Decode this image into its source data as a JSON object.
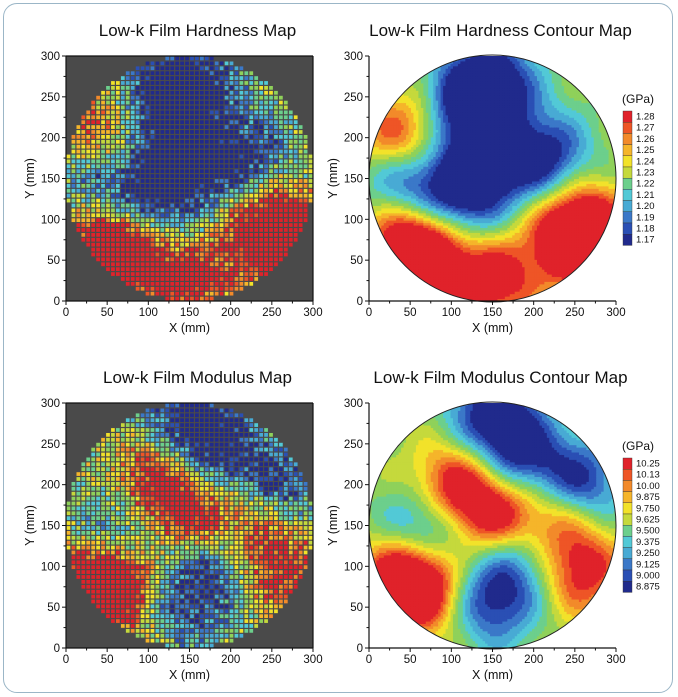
{
  "colors": {
    "frame_border": "#9bb6c7",
    "map_background": "#4a4a4a",
    "scale": [
      "#202a8c",
      "#2a4fb4",
      "#3b78c8",
      "#48aad4",
      "#52c9d6",
      "#6ccf8c",
      "#8fd15a",
      "#c5d93c",
      "#f2e22a",
      "#f5b52a",
      "#f28a2a",
      "#ee5526",
      "#e0222a"
    ]
  },
  "chart_data": [
    {
      "type": "heatmap",
      "title": "Low-k Film Hardness Map",
      "xlabel": "X (mm)",
      "ylabel": "Y (mm)",
      "xlim": [
        0,
        300
      ],
      "ylim": [
        0,
        300
      ],
      "xticks": [
        "0",
        "50",
        "100",
        "150",
        "200",
        "250",
        "300"
      ],
      "yticks": [
        "0",
        "50",
        "100",
        "150",
        "200",
        "250",
        "300"
      ],
      "wafer_diameter": 300,
      "cell_pitch": 6,
      "value_range": [
        1.17,
        1.28
      ],
      "hot_spots": [
        {
          "x": 50,
          "y": 80,
          "v": 1.28
        },
        {
          "x": 75,
          "y": 55,
          "v": 1.27
        },
        {
          "x": 260,
          "y": 95,
          "v": 1.28
        },
        {
          "x": 250,
          "y": 70,
          "v": 1.26
        },
        {
          "x": 40,
          "y": 200,
          "v": 1.25
        },
        {
          "x": 150,
          "y": 25,
          "v": 1.26
        }
      ],
      "cold_spots": [
        {
          "x": 120,
          "y": 240,
          "v": 1.17
        },
        {
          "x": 140,
          "y": 170,
          "v": 1.19
        },
        {
          "x": 215,
          "y": 175,
          "v": 1.18
        },
        {
          "x": 150,
          "y": 270,
          "v": 1.18
        },
        {
          "x": 105,
          "y": 115,
          "v": 1.19
        },
        {
          "x": 45,
          "y": 150,
          "v": 1.19
        }
      ]
    },
    {
      "type": "contour",
      "title": "Low-k Film Hardness Contour Map",
      "xlabel": "X (mm)",
      "ylabel": "Y (mm)",
      "xlim": [
        0,
        300
      ],
      "ylim": [
        0,
        300
      ],
      "xticks": [
        "0",
        "50",
        "100",
        "150",
        "200",
        "250",
        "300"
      ],
      "yticks": [
        "0",
        "50",
        "100",
        "150",
        "200",
        "250",
        "300"
      ],
      "wafer_diameter": 300,
      "unit": "(GPa)",
      "levels": [
        "1.28",
        "1.27",
        "1.26",
        "1.25",
        "1.24",
        "1.23",
        "1.22",
        "1.21",
        "1.20",
        "1.19",
        "1.18",
        "1.17"
      ],
      "value_range": [
        1.17,
        1.28
      ],
      "hot_spots": [
        {
          "x": 50,
          "y": 80,
          "v": 1.28
        },
        {
          "x": 75,
          "y": 55,
          "v": 1.27
        },
        {
          "x": 260,
          "y": 95,
          "v": 1.28
        },
        {
          "x": 250,
          "y": 70,
          "v": 1.26
        },
        {
          "x": 40,
          "y": 200,
          "v": 1.25
        },
        {
          "x": 150,
          "y": 25,
          "v": 1.26
        }
      ],
      "cold_spots": [
        {
          "x": 120,
          "y": 240,
          "v": 1.17
        },
        {
          "x": 140,
          "y": 170,
          "v": 1.19
        },
        {
          "x": 215,
          "y": 175,
          "v": 1.18
        },
        {
          "x": 150,
          "y": 270,
          "v": 1.18
        },
        {
          "x": 105,
          "y": 115,
          "v": 1.19
        },
        {
          "x": 45,
          "y": 150,
          "v": 1.19
        }
      ]
    },
    {
      "type": "heatmap",
      "title": "Low-k Film Modulus Map",
      "xlabel": "X (mm)",
      "ylabel": "Y (mm)",
      "xlim": [
        0,
        300
      ],
      "ylim": [
        0,
        300
      ],
      "xticks": [
        "0",
        "50",
        "100",
        "150",
        "200",
        "250",
        "300"
      ],
      "yticks": [
        "0",
        "50",
        "100",
        "150",
        "200",
        "250",
        "300"
      ],
      "wafer_diameter": 300,
      "cell_pitch": 6,
      "value_range": [
        8.875,
        10.25
      ],
      "hot_spots": [
        {
          "x": 45,
          "y": 90,
          "v": 10.25
        },
        {
          "x": 60,
          "y": 70,
          "v": 10.13
        },
        {
          "x": 255,
          "y": 95,
          "v": 10.25
        },
        {
          "x": 150,
          "y": 165,
          "v": 10.0
        },
        {
          "x": 105,
          "y": 200,
          "v": 9.875
        },
        {
          "x": 220,
          "y": 150,
          "v": 9.875
        }
      ],
      "cold_spots": [
        {
          "x": 150,
          "y": 60,
          "v": 8.875
        },
        {
          "x": 70,
          "y": 145,
          "v": 9.125
        },
        {
          "x": 200,
          "y": 120,
          "v": 9.125
        },
        {
          "x": 180,
          "y": 235,
          "v": 9.25
        },
        {
          "x": 150,
          "y": 290,
          "v": 9.0
        },
        {
          "x": 255,
          "y": 200,
          "v": 9.25
        }
      ]
    },
    {
      "type": "contour",
      "title": "Low-k Film Modulus Contour Map",
      "xlabel": "X (mm)",
      "ylabel": "Y (mm)",
      "xlim": [
        0,
        300
      ],
      "ylim": [
        0,
        300
      ],
      "xticks": [
        "0",
        "50",
        "100",
        "150",
        "200",
        "250",
        "300"
      ],
      "yticks": [
        "0",
        "50",
        "100",
        "150",
        "200",
        "250",
        "300"
      ],
      "wafer_diameter": 300,
      "unit": "(GPa)",
      "levels": [
        "10.25",
        "10.13",
        "10.00",
        "9.875",
        "9.750",
        "9.625",
        "9.500",
        "9.375",
        "9.250",
        "9.125",
        "9.000",
        "8.875"
      ],
      "value_range": [
        8.875,
        10.25
      ],
      "hot_spots": [
        {
          "x": 45,
          "y": 90,
          "v": 10.25
        },
        {
          "x": 60,
          "y": 70,
          "v": 10.13
        },
        {
          "x": 255,
          "y": 95,
          "v": 10.25
        },
        {
          "x": 150,
          "y": 165,
          "v": 10.0
        },
        {
          "x": 105,
          "y": 200,
          "v": 9.875
        },
        {
          "x": 220,
          "y": 150,
          "v": 9.875
        }
      ],
      "cold_spots": [
        {
          "x": 150,
          "y": 60,
          "v": 8.875
        },
        {
          "x": 70,
          "y": 145,
          "v": 9.125
        },
        {
          "x": 200,
          "y": 120,
          "v": 9.125
        },
        {
          "x": 180,
          "y": 235,
          "v": 9.25
        },
        {
          "x": 150,
          "y": 290,
          "v": 9.0
        },
        {
          "x": 255,
          "y": 200,
          "v": 9.25
        }
      ]
    }
  ]
}
